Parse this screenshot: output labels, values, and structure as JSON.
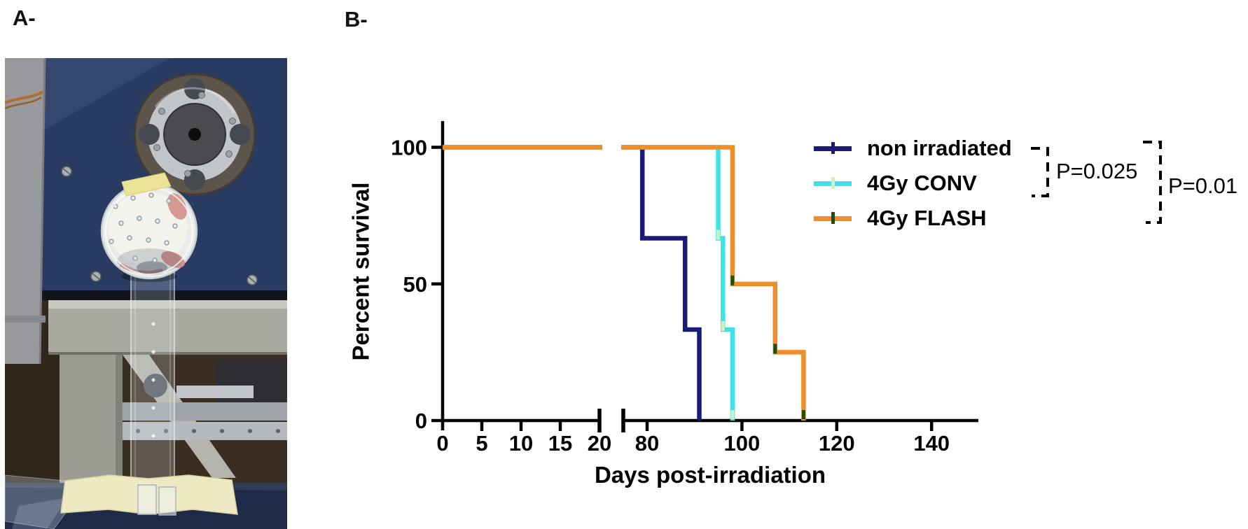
{
  "panels": {
    "a_label": "A-",
    "b_label": "B-"
  },
  "chart_data": {
    "type": "line",
    "subtype": "kaplan-meier-survival-curve",
    "title": "",
    "xlabel": "Days post-irradiation",
    "ylabel": "Percent survival",
    "x_axis": {
      "segment1_ticks": [
        0,
        5,
        10,
        15,
        20
      ],
      "segment2_ticks": [
        80,
        100,
        120,
        140
      ],
      "axis_break_between": [
        20,
        75
      ]
    },
    "y_ticks": [
      0,
      50,
      100
    ],
    "ylim": [
      0,
      100
    ],
    "grid": false,
    "legend_position": "top-right",
    "series": [
      {
        "name": "non irradiated",
        "color": "#1a1a78",
        "event_tick_color": "#1a1a78",
        "steps": [
          [
            0,
            100
          ],
          [
            79,
            100
          ],
          [
            79,
            66.7
          ],
          [
            88,
            66.7
          ],
          [
            88,
            33.3
          ],
          [
            91,
            33.3
          ],
          [
            91,
            0
          ]
        ]
      },
      {
        "name": "4Gy CONV",
        "color": "#3fe2e8",
        "event_tick_color": "#cdf2c2",
        "steps": [
          [
            0,
            100
          ],
          [
            95,
            100
          ],
          [
            95,
            66.7
          ],
          [
            96,
            66.7
          ],
          [
            96,
            33.3
          ],
          [
            98,
            33.3
          ],
          [
            98,
            0
          ]
        ]
      },
      {
        "name": "4Gy FLASH",
        "color": "#ee8f2c",
        "event_tick_color": "#17500f",
        "steps": [
          [
            0,
            100
          ],
          [
            98,
            100
          ],
          [
            98,
            50
          ],
          [
            107,
            50
          ],
          [
            107,
            25
          ],
          [
            113,
            25
          ],
          [
            113,
            0
          ]
        ]
      }
    ],
    "annotations": [
      {
        "label": "P=0.025",
        "compares": [
          "non irradiated",
          "4Gy CONV"
        ]
      },
      {
        "label": "P=0.01",
        "compares": [
          "non irradiated",
          "4Gy FLASH"
        ]
      }
    ]
  },
  "photo": {
    "colors": {
      "machine_blue": "#2a3b61",
      "frame_grey": "#a9a9a1",
      "pole_grey": "#97999d",
      "tape_yellow": "#ebe497",
      "table_navy": "#1e2a47",
      "floor_brown": "#3b2e21"
    }
  }
}
